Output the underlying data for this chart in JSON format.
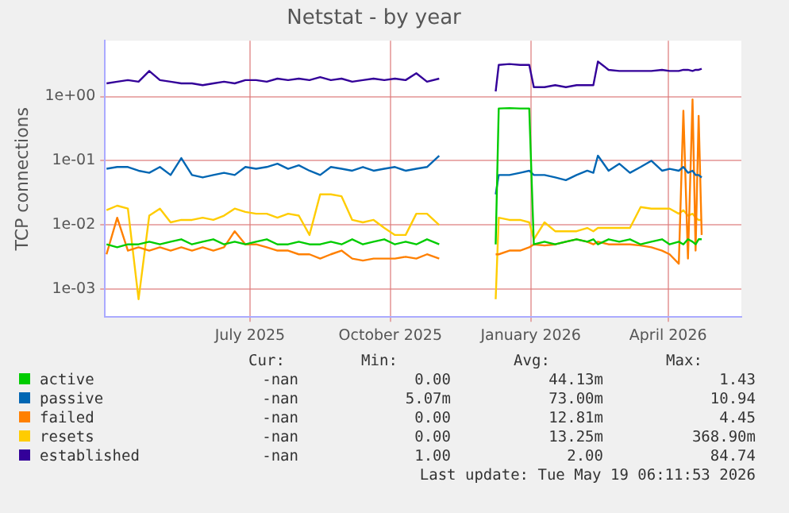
{
  "chart_data": {
    "type": "line",
    "title": "Netstat - by year",
    "ylabel": "TCP connections",
    "log": "y",
    "grid": true,
    "legend": "bottom",
    "marker": "none",
    "line_style": "solid",
    "x": [
      "2025-03-29",
      "2025-04-05",
      "2025-04-12",
      "2025-04-19",
      "2025-04-26",
      "2025-05-03",
      "2025-05-10",
      "2025-05-17",
      "2025-05-24",
      "2025-05-31",
      "2025-06-07",
      "2025-06-14",
      "2025-06-21",
      "2025-06-28",
      "2025-07-05",
      "2025-07-12",
      "2025-07-19",
      "2025-07-26",
      "2025-08-02",
      "2025-08-09",
      "2025-08-16",
      "2025-08-23",
      "2025-08-30",
      "2025-09-06",
      "2025-09-13",
      "2025-09-20",
      "2025-09-27",
      "2025-10-04",
      "2025-10-11",
      "2025-10-18",
      "2025-10-25",
      "2025-11-02",
      "2025-11-20",
      "2025-12-09",
      "2025-12-11",
      "2025-12-18",
      "2025-12-25",
      "2025-12-31",
      "2026-01-03",
      "2026-01-10",
      "2026-01-17",
      "2026-01-24",
      "2026-01-31",
      "2026-02-07",
      "2026-02-11",
      "2026-02-14",
      "2026-02-21",
      "2026-02-28",
      "2026-03-07",
      "2026-03-14",
      "2026-03-21",
      "2026-03-28",
      "2026-04-02",
      "2026-04-08",
      "2026-04-11",
      "2026-04-14",
      "2026-04-17",
      "2026-04-19",
      "2026-04-21",
      "2026-04-23"
    ],
    "xlim": [
      "2025-03-28",
      "2026-05-19"
    ],
    "xticks": [
      {
        "value": "2025-07-01",
        "label": "July 2025"
      },
      {
        "value": "2025-10-01",
        "label": "October 2025"
      },
      {
        "value": "2026-01-01",
        "label": "January 2026"
      },
      {
        "value": "2026-04-01",
        "label": "April 2026"
      }
    ],
    "ylim": [
      0.00037,
      7.4
    ],
    "yticks": [
      {
        "value": 0.001,
        "label": "1e-03"
      },
      {
        "value": 0.01,
        "label": "1e-02"
      },
      {
        "value": 0.1,
        "label": "1e-01"
      },
      {
        "value": 1,
        "label": "1e+00"
      }
    ],
    "series": [
      {
        "name": "active",
        "color": "#00cc00",
        "values": [
          0.005,
          0.0045,
          0.005,
          0.005,
          0.0055,
          0.005,
          0.0055,
          0.006,
          0.005,
          0.0055,
          0.006,
          0.005,
          0.0055,
          0.005,
          0.0055,
          0.006,
          0.005,
          0.005,
          0.0055,
          0.005,
          0.005,
          0.0055,
          0.005,
          0.006,
          0.005,
          0.0055,
          0.006,
          0.005,
          0.0055,
          0.005,
          0.006,
          0.005,
          null,
          0.005,
          0.65,
          0.66,
          0.65,
          0.65,
          0.005,
          0.0055,
          0.005,
          0.0055,
          0.006,
          0.0055,
          0.006,
          0.005,
          0.006,
          0.0055,
          0.006,
          0.005,
          0.0055,
          0.006,
          0.005,
          0.0055,
          0.005,
          0.006,
          0.0055,
          0.005,
          0.006,
          0.006
        ]
      },
      {
        "name": "passive",
        "color": "#0066b3",
        "values": [
          0.075,
          0.08,
          0.08,
          0.07,
          0.065,
          0.08,
          0.06,
          0.11,
          0.06,
          0.055,
          0.06,
          0.065,
          0.06,
          0.08,
          0.075,
          0.08,
          0.09,
          0.075,
          0.085,
          0.07,
          0.06,
          0.08,
          0.075,
          0.07,
          0.08,
          0.07,
          0.075,
          0.08,
          0.07,
          0.075,
          0.08,
          0.12,
          null,
          0.03,
          0.06,
          0.06,
          0.065,
          0.07,
          0.06,
          0.06,
          0.055,
          0.05,
          0.06,
          0.07,
          0.065,
          0.12,
          0.07,
          0.09,
          0.065,
          0.08,
          0.1,
          0.07,
          0.075,
          0.07,
          0.08,
          0.065,
          0.07,
          0.06,
          0.06,
          0.055
        ]
      },
      {
        "name": "failed",
        "color": "#ff8000",
        "values": [
          0.0035,
          0.013,
          0.004,
          0.0045,
          0.004,
          0.0045,
          0.004,
          0.0045,
          0.004,
          0.0045,
          0.004,
          0.0045,
          0.008,
          0.005,
          0.005,
          0.0045,
          0.004,
          0.004,
          0.0035,
          0.0035,
          0.003,
          0.0035,
          0.004,
          0.003,
          0.0028,
          0.003,
          0.003,
          0.003,
          0.0032,
          0.003,
          0.0035,
          0.003,
          null,
          0.0035,
          0.0035,
          0.004,
          0.004,
          0.0045,
          0.005,
          0.0048,
          0.005,
          0.0055,
          0.006,
          0.0055,
          0.005,
          0.0055,
          0.005,
          0.005,
          0.005,
          0.0048,
          0.0045,
          0.004,
          0.0035,
          0.0025,
          0.6,
          0.003,
          0.9,
          0.004,
          0.5,
          0.007
        ]
      },
      {
        "name": "resets",
        "color": "#ffcc00",
        "values": [
          0.017,
          0.02,
          0.018,
          0.0007,
          0.014,
          0.018,
          0.011,
          0.012,
          0.012,
          0.013,
          0.012,
          0.014,
          0.018,
          0.016,
          0.015,
          0.015,
          0.013,
          0.015,
          0.014,
          0.007,
          0.03,
          0.03,
          0.028,
          0.012,
          0.011,
          0.012,
          0.009,
          0.007,
          0.007,
          0.015,
          0.015,
          0.01,
          null,
          0.0007,
          0.013,
          0.012,
          0.012,
          0.011,
          0.006,
          0.011,
          0.008,
          0.008,
          0.008,
          0.009,
          0.008,
          0.009,
          0.009,
          0.009,
          0.009,
          0.019,
          0.018,
          0.018,
          0.018,
          0.015,
          0.017,
          0.014,
          0.015,
          0.013,
          0.012,
          0.012
        ]
      },
      {
        "name": "established",
        "color": "#330099",
        "values": [
          1.6,
          1.7,
          1.8,
          1.7,
          2.5,
          1.8,
          1.7,
          1.6,
          1.6,
          1.5,
          1.6,
          1.7,
          1.6,
          1.8,
          1.8,
          1.7,
          1.9,
          1.8,
          1.9,
          1.8,
          2.0,
          1.8,
          1.9,
          1.7,
          1.8,
          1.9,
          1.8,
          1.9,
          1.8,
          2.3,
          1.7,
          1.9,
          null,
          1.2,
          3.1,
          3.2,
          3.1,
          3.1,
          1.4,
          1.4,
          1.5,
          1.4,
          1.5,
          1.5,
          1.5,
          3.5,
          2.6,
          2.5,
          2.5,
          2.5,
          2.5,
          2.6,
          2.5,
          2.5,
          2.6,
          2.6,
          2.5,
          2.6,
          2.6,
          2.7
        ]
      }
    ],
    "annotations": [
      "Cur:",
      "Min:",
      "Avg:",
      "Max:",
      "-nan",
      "0.00",
      "44.13m",
      "1.43",
      "-nan",
      "5.07m",
      "73.00m",
      "10.94",
      "-nan",
      "0.00",
      "12.81m",
      "4.45",
      "-nan",
      "0.00",
      "13.25m",
      "368.90m",
      "-nan",
      "1.00",
      "2.00",
      "84.74",
      "Last update: Tue May 19 06:11:53 2026"
    ]
  }
}
